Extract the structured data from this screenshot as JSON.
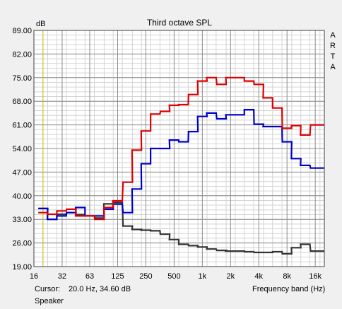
{
  "chart_data": {
    "type": "line",
    "title": "Third octave SPL",
    "ylabel": "dB",
    "xlabel": "Frequency band (Hz)",
    "x_scale": "log",
    "xlim": [
      16,
      20000
    ],
    "ylim": [
      19.0,
      89.0
    ],
    "y_ticks": [
      "89.00",
      "82.00",
      "75.00",
      "68.00",
      "61.00",
      "54.00",
      "47.00",
      "40.00",
      "33.00",
      "26.00",
      "19.00"
    ],
    "x_ticks": [
      {
        "label": "16",
        "f": 16
      },
      {
        "label": "32",
        "f": 32
      },
      {
        "label": "63",
        "f": 63
      },
      {
        "label": "125",
        "f": 125
      },
      {
        "label": "250",
        "f": 250
      },
      {
        "label": "500",
        "f": 500
      },
      {
        "label": "1k",
        "f": 1000
      },
      {
        "label": "2k",
        "f": 2000
      },
      {
        "label": "4k",
        "f": 4000
      },
      {
        "label": "8k",
        "f": 8000
      },
      {
        "label": "16k",
        "f": 16000
      }
    ],
    "bands": [
      20,
      25,
      31.5,
      40,
      50,
      63,
      80,
      100,
      125,
      160,
      200,
      250,
      315,
      400,
      500,
      630,
      800,
      1000,
      1250,
      1600,
      2000,
      2500,
      3150,
      4000,
      5000,
      6300,
      8000,
      10000,
      12500,
      16000,
      20000
    ],
    "series": [
      {
        "color": "#333333",
        "values": [
          36.2,
          33.0,
          34.5,
          35.0,
          34.4,
          34.0,
          33.4,
          37.6,
          38.0,
          31.0,
          30.0,
          29.8,
          29.6,
          28.6,
          27.0,
          25.6,
          25.2,
          24.8,
          24.2,
          23.8,
          23.6,
          23.6,
          23.4,
          23.2,
          23.2,
          23.4,
          22.8,
          24.6,
          25.6,
          23.6,
          23.6
        ]
      },
      {
        "color": "#0000cc",
        "values": [
          36.2,
          33.0,
          34.0,
          35.0,
          36.5,
          34.0,
          34.0,
          36.0,
          37.5,
          35.0,
          42.0,
          49.5,
          54.0,
          54.0,
          56.5,
          56.0,
          59.0,
          63.5,
          64.5,
          62.8,
          64.0,
          64.0,
          65.5,
          61.2,
          60.5,
          60.5,
          56.0,
          51.0,
          49.0,
          48.2,
          48.2
        ]
      },
      {
        "color": "#dd0000",
        "values": [
          35.0,
          34.5,
          35.5,
          36.0,
          34.0,
          34.0,
          33.0,
          36.5,
          38.5,
          44.0,
          53.5,
          59.2,
          64.2,
          65.0,
          66.8,
          67.0,
          70.0,
          74.0,
          75.0,
          73.0,
          75.0,
          75.0,
          74.0,
          73.0,
          69.0,
          66.0,
          60.0,
          60.8,
          58.0,
          61.0,
          61.0
        ]
      }
    ]
  },
  "arta_letters": [
    "A",
    "R",
    "T",
    "A"
  ],
  "status": {
    "cursor_label": "Cursor:",
    "cursor_value": "20.0 Hz, 34.60 dB",
    "panel_label": "Speaker"
  }
}
